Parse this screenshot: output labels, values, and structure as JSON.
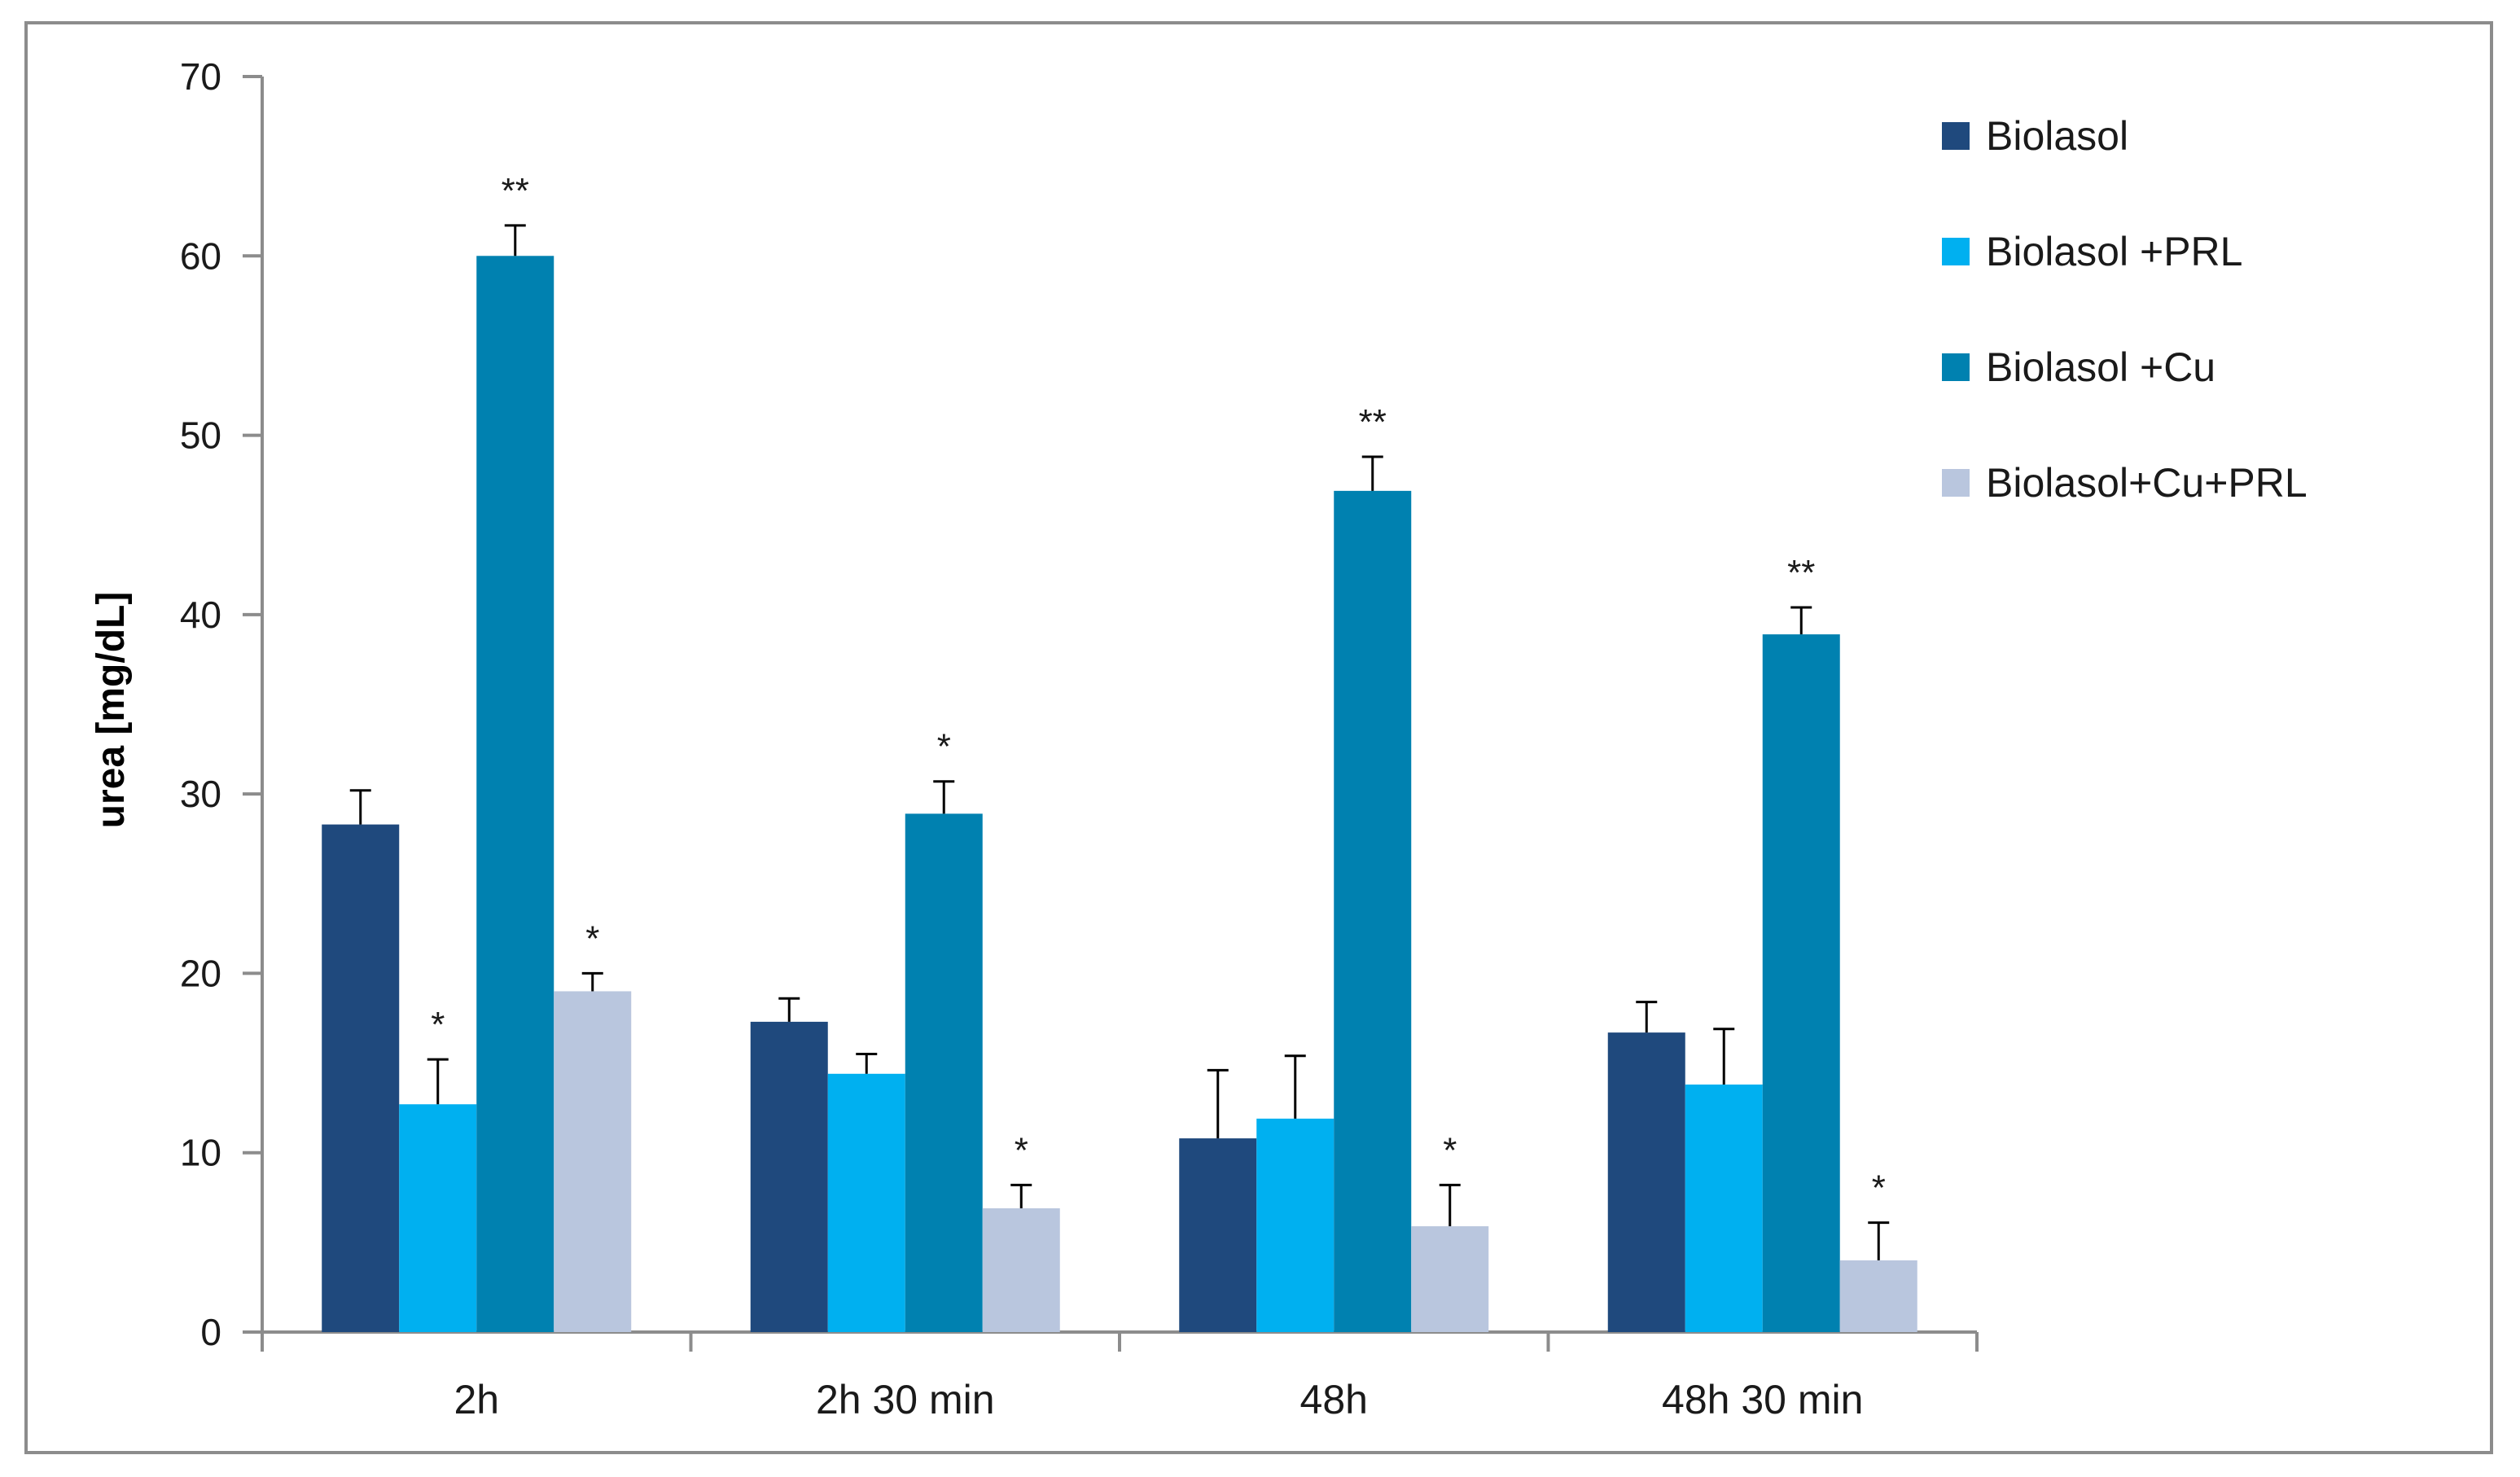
{
  "chart_data": {
    "type": "bar",
    "title": "",
    "xlabel": "",
    "ylabel": "urea [mg/dL]",
    "ylim": [
      0,
      70
    ],
    "yticks": [
      0,
      10,
      20,
      30,
      40,
      50,
      60,
      70
    ],
    "grid": false,
    "legend_position": "top-right",
    "categories": [
      "2h",
      "2h 30 min",
      "48h",
      "48h 30 min"
    ],
    "series": [
      {
        "name": "Biolasol",
        "color": "#1f497d",
        "values": [
          28.3,
          17.3,
          10.8,
          16.7
        ],
        "errors": [
          1.9,
          1.3,
          3.8,
          1.7
        ],
        "significance": [
          "",
          "",
          "",
          ""
        ]
      },
      {
        "name": "Biolasol +PRL",
        "color": "#00b0f0",
        "values": [
          12.7,
          14.4,
          11.9,
          13.8
        ],
        "errors": [
          2.5,
          1.1,
          3.5,
          3.1
        ],
        "significance": [
          "*",
          "",
          "",
          ""
        ]
      },
      {
        "name": "Biolasol +Cu",
        "color": "#0081b0",
        "values": [
          60.0,
          28.9,
          46.9,
          38.9
        ],
        "errors": [
          1.7,
          1.8,
          1.9,
          1.5
        ],
        "significance": [
          "**",
          "*",
          "**",
          "**"
        ]
      },
      {
        "name": "Biolasol+Cu+PRL",
        "color": "#b9c6de",
        "values": [
          19.0,
          6.9,
          5.9,
          4.0
        ],
        "errors": [
          1.0,
          1.3,
          2.3,
          2.1
        ],
        "significance": [
          "*",
          "*",
          "*",
          "*"
        ]
      }
    ]
  }
}
